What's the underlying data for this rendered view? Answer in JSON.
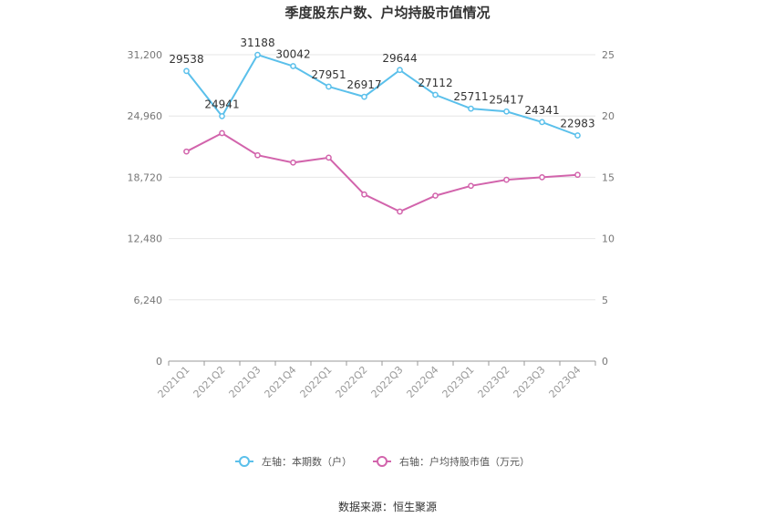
{
  "chart_data": {
    "type": "line",
    "title": "季度股东户数、户均持股市值情况",
    "source": "数据来源：恒生聚源",
    "categories": [
      "2021Q1",
      "2021Q2",
      "2021Q3",
      "2021Q4",
      "2022Q1",
      "2022Q2",
      "2022Q3",
      "2022Q4",
      "2023Q1",
      "2023Q2",
      "2023Q3",
      "2023Q4"
    ],
    "left_axis": {
      "ticks": [
        "0",
        "6,240",
        "12,480",
        "18,720",
        "24,960",
        "31,200"
      ],
      "ylim": [
        0,
        31200
      ]
    },
    "right_axis": {
      "ticks": [
        "0",
        "5",
        "10",
        "15",
        "20",
        "25"
      ],
      "ylim": [
        0,
        25
      ]
    },
    "series": [
      {
        "name": "左轴：本期数（户）",
        "axis": "left",
        "color": "#5bc0eb",
        "values": [
          29538,
          24941,
          31188,
          30042,
          27951,
          26917,
          29644,
          27112,
          25711,
          25417,
          24341,
          22983
        ],
        "labels": [
          "29538",
          "24941",
          "31188",
          "30042",
          "27951",
          "26917",
          "29644",
          "27112",
          "25711",
          "25417",
          "24341",
          "22983"
        ]
      },
      {
        "name": "右轴：户均持股市值（万元）",
        "axis": "right",
        "color": "#d264ac",
        "values": [
          17.1,
          18.6,
          16.8,
          16.2,
          16.6,
          13.6,
          12.2,
          13.5,
          14.3,
          14.8,
          15.0,
          15.2
        ]
      }
    ],
    "legend_position": "bottom",
    "grid": true
  }
}
